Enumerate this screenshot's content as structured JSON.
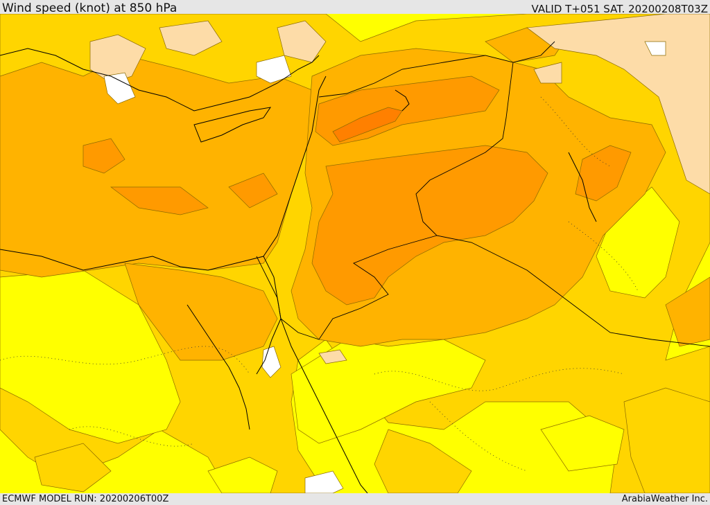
{
  "header": {
    "title": "Wind speed (knot) at 850 hPa",
    "valid_time": "VALID T+051 SAT. 20200208T03Z"
  },
  "footer": {
    "model_run": "ECMWF MODEL RUN: 20200206T00Z",
    "credit": "ArabiaWeather Inc."
  },
  "map": {
    "variable": "wind speed",
    "units": "knot",
    "level": "850 hPa",
    "shading_colors": {
      "lowest": "#ffffff",
      "light": "#ffff00",
      "medium_light": "#ffdb00",
      "medium": "#ffb800",
      "medium_high": "#ff9f00",
      "high": "#ff8400",
      "peach": "#fddca8"
    },
    "overlays": [
      "coastlines",
      "country borders",
      "speed contour lines",
      "dotted isolines"
    ]
  }
}
